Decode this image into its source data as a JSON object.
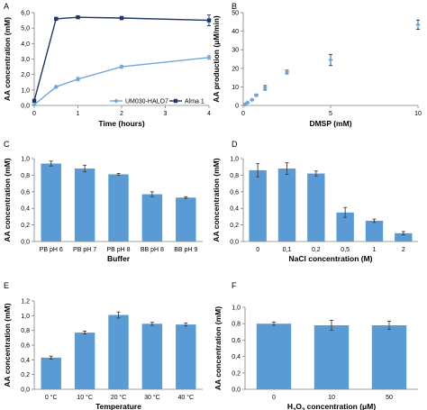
{
  "chart_data": [
    {
      "panel": "A",
      "type": "line",
      "xlabel": "Time (hours)",
      "ylabel": "AA concentration (mM)",
      "xlim": [
        0,
        4
      ],
      "ylim": [
        0,
        6
      ],
      "xticks": [
        "0",
        "1",
        "2",
        "3",
        "4"
      ],
      "yticks": [
        "0,0",
        "1,0",
        "2,0",
        "3,0",
        "4,0",
        "5,0",
        "6,0"
      ],
      "legend_position": "bottom-right",
      "series": [
        {
          "name": "UM030-HALO7",
          "color": "#6fa8dc",
          "marker": "diamond",
          "x": [
            0,
            0.5,
            1,
            2,
            4
          ],
          "y": [
            0.05,
            1.2,
            1.7,
            2.5,
            3.1
          ],
          "err": [
            0.05,
            0.08,
            0.12,
            0.1,
            0.12
          ]
        },
        {
          "name": "Alma 1",
          "color": "#1f3864",
          "marker": "square",
          "x": [
            0,
            0.5,
            1,
            2,
            4
          ],
          "y": [
            0.3,
            5.6,
            5.7,
            5.65,
            5.5
          ],
          "err": [
            0.05,
            0.08,
            0.05,
            0.1,
            0.35
          ]
        }
      ]
    },
    {
      "panel": "B",
      "type": "scatter",
      "xlabel": "DMSP (mM)",
      "ylabel": "AA production (μM/min)",
      "xlim": [
        0,
        10
      ],
      "ylim": [
        0,
        50
      ],
      "xticks": [
        "0",
        "5",
        "10"
      ],
      "yticks": [
        "0",
        "10",
        "20",
        "30",
        "40",
        "50"
      ],
      "color": "#6fa8dc",
      "x": [
        0.1,
        0.25,
        0.5,
        0.75,
        1.25,
        2.5,
        5,
        10
      ],
      "y": [
        0.5,
        1.5,
        3,
        5.5,
        9.5,
        18,
        24.5,
        43.5
      ],
      "err": [
        0.2,
        0.3,
        0.4,
        0.5,
        1.2,
        1.0,
        3.0,
        2.5
      ]
    },
    {
      "panel": "C",
      "type": "bar",
      "xlabel": "Buffer",
      "ylabel": "AA concentration (mM)",
      "ylim": [
        0,
        1.0
      ],
      "yticks": [
        "0,0",
        "0,2",
        "0,4",
        "0,6",
        "0,8",
        "1,0"
      ],
      "color": "#5b9bd5",
      "categories": [
        "PB pH 6",
        "PB pH 7",
        "PB pH 8",
        "BB pH 8",
        "BB pH 9"
      ],
      "values": [
        0.94,
        0.88,
        0.81,
        0.57,
        0.53
      ],
      "err": [
        0.03,
        0.04,
        0.01,
        0.03,
        0.01
      ]
    },
    {
      "panel": "D",
      "type": "bar",
      "xlabel": "NaCl concentration (M)",
      "ylabel": "AA concentration (mM)",
      "ylim": [
        0,
        1.0
      ],
      "yticks": [
        "0,0",
        "0,2",
        "0,4",
        "0,6",
        "0,8",
        "1,0"
      ],
      "color": "#5b9bd5",
      "categories": [
        "0",
        "0,1",
        "0,2",
        "0,5",
        "1",
        "2"
      ],
      "values": [
        0.86,
        0.88,
        0.82,
        0.35,
        0.25,
        0.1
      ],
      "err": [
        0.08,
        0.07,
        0.03,
        0.06,
        0.02,
        0.02
      ]
    },
    {
      "panel": "E",
      "type": "bar",
      "xlabel": "Temperature",
      "ylabel": "AA concentration (mM)",
      "ylim": [
        0,
        1.2
      ],
      "yticks": [
        "0,0",
        "0,2",
        "0,4",
        "0,6",
        "0,8",
        "1,0",
        "1,2"
      ],
      "color": "#5b9bd5",
      "categories": [
        "0 °C",
        "10 °C",
        "20 °C",
        "30 °C",
        "40 °C"
      ],
      "values": [
        0.43,
        0.77,
        1.01,
        0.89,
        0.88
      ],
      "err": [
        0.02,
        0.02,
        0.04,
        0.02,
        0.02
      ]
    },
    {
      "panel": "F",
      "type": "bar",
      "xlabel": "H2O2 concentration (μM)",
      "ylabel": "AA concentration (mM)",
      "ylim": [
        0,
        1.0
      ],
      "yticks": [
        "0,0",
        "0,2",
        "0,4",
        "0,6",
        "0,8",
        "1,0"
      ],
      "color": "#5b9bd5",
      "categories": [
        "0",
        "10",
        "50"
      ],
      "values": [
        0.8,
        0.78,
        0.78
      ],
      "err": [
        0.02,
        0.06,
        0.05
      ]
    }
  ]
}
